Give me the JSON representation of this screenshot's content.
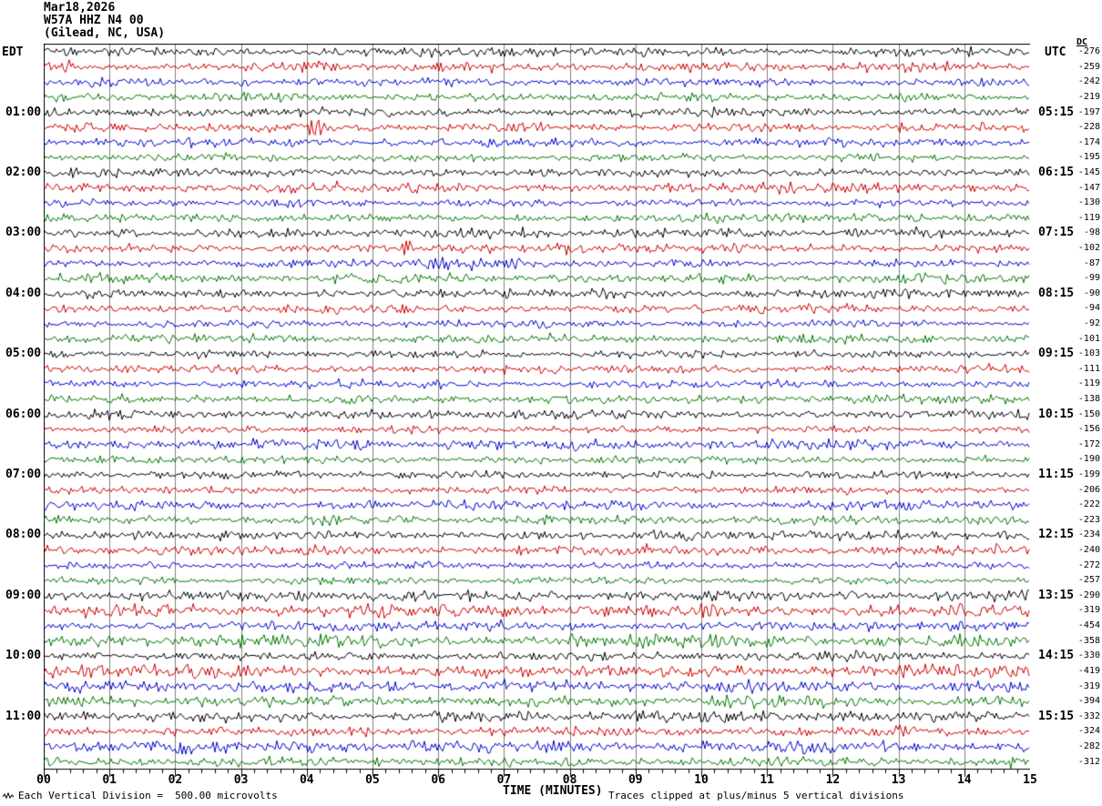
{
  "header": {
    "date": "Mar18,2026",
    "station": "W57A HHZ N4 00",
    "location": "(Gilead, NC, USA)"
  },
  "axis": {
    "left_tz": "EDT",
    "right_tz": "UTC",
    "dc_label": "DC",
    "x_axis_label": "TIME (MINUTES)",
    "minute_labels": [
      "00",
      "01",
      "02",
      "03",
      "04",
      "05",
      "06",
      "07",
      "08",
      "09",
      "10",
      "11",
      "12",
      "13",
      "14",
      "15"
    ]
  },
  "footer": {
    "scale_note": "Each Vertical Division =  500.00 microvolts",
    "clip_note": "Traces clipped at plus/minus 5 vertical divisions"
  },
  "colors": {
    "trace_cycle": [
      "#000000",
      "#cc0000",
      "#0000cc",
      "#007700"
    ],
    "grid": "#808080",
    "axis": "#000000"
  },
  "chart_data": {
    "type": "line",
    "variant": "helicorder-seismogram",
    "title": "W57A HHZ N4 00 (Gilead, NC, USA) Mar18,2026",
    "xlabel": "TIME (MINUTES)",
    "x_range_minutes": [
      0,
      15
    ],
    "minutes_per_trace": 15,
    "traces_per_hour": 4,
    "num_traces": 48,
    "grid": true,
    "left_time_labels": [
      "01:00",
      "02:00",
      "03:00",
      "04:00",
      "05:00",
      "06:00",
      "07:00",
      "08:00",
      "09:00",
      "10:00",
      "11:00"
    ],
    "right_time_labels": [
      "05:15",
      "06:15",
      "07:15",
      "08:15",
      "09:15",
      "10:15",
      "11:15",
      "12:15",
      "13:15",
      "14:15",
      "15:15"
    ],
    "dc_offsets_microvolts": [
      -276,
      -259,
      -242,
      -219,
      -197,
      -228,
      -174,
      -195,
      -145,
      -147,
      -130,
      -119,
      -98,
      -102,
      -87,
      -99,
      -90,
      -94,
      -92,
      -101,
      -103,
      -111,
      -119,
      -138,
      -150,
      -156,
      -172,
      -190,
      -199,
      -206,
      -222,
      -223,
      -234,
      -240,
      -272,
      -257,
      -290,
      -319,
      -454,
      -358,
      -330,
      -419,
      -319,
      -394,
      -332,
      -324,
      -282,
      -312
    ],
    "scale": "Each Vertical Division = 500.00 microvolts",
    "clipping": "Traces clipped at plus/minus 5 vertical divisions",
    "content_note": "Continuous background microseismic noise on all 48 fifteen-minute traces; amplitudes modest and clipped at +/-5 divisions",
    "events": [
      {
        "row": 5,
        "minute": 4.12,
        "relative_amplitude": 3.2,
        "width_minutes": 0.07
      },
      {
        "row": 13,
        "minute": 5.5,
        "relative_amplitude": 2.0,
        "width_minutes": 0.06
      },
      {
        "row": 14,
        "minute": 5.8,
        "relative_amplitude": 1.2,
        "width_minutes": 0.9
      }
    ]
  }
}
